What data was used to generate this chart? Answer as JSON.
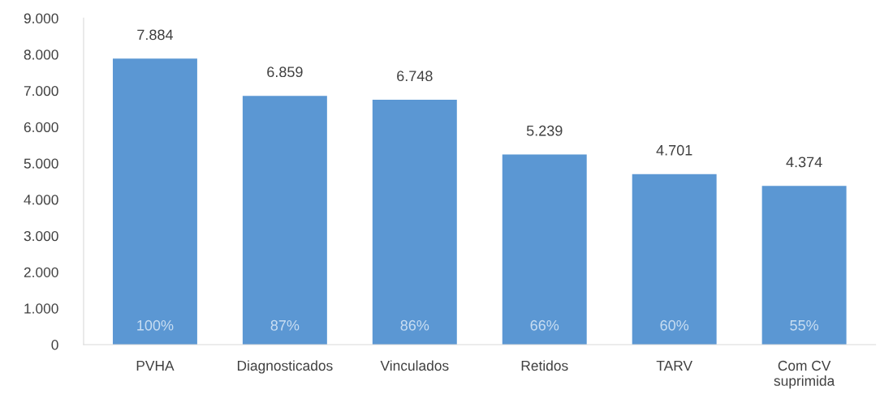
{
  "chart_data": {
    "type": "bar",
    "categories": [
      "PVHA",
      "Diagnosticados",
      "Vinculados",
      "Retidos",
      "TARV",
      "Com CV\nsuprimida"
    ],
    "values": [
      7884,
      6859,
      6748,
      5239,
      4701,
      4374
    ],
    "value_labels": [
      "7.884",
      "6.859",
      "6.748",
      "5.239",
      "4.701",
      "4.374"
    ],
    "color": "#5b97d3",
    "ylim": [
      0,
      9000
    ],
    "yticks": [
      {
        "value": 0,
        "label": "0"
      },
      {
        "value": 1000,
        "label": "1.000"
      },
      {
        "value": 2000,
        "label": "2.000"
      },
      {
        "value": 3000,
        "label": "3.000"
      },
      {
        "value": 4000,
        "label": "4.000"
      },
      {
        "value": 5000,
        "label": "5.000"
      },
      {
        "value": 6000,
        "label": "6.000"
      },
      {
        "value": 7000,
        "label": "7.000"
      },
      {
        "value": 8000,
        "label": "8.000"
      },
      {
        "value": 9000,
        "label": "9.000"
      }
    ],
    "annotations": [
      "100%",
      "87%",
      "86%",
      "66%",
      "60%",
      "55%"
    ],
    "grid": false,
    "legend": false
  }
}
